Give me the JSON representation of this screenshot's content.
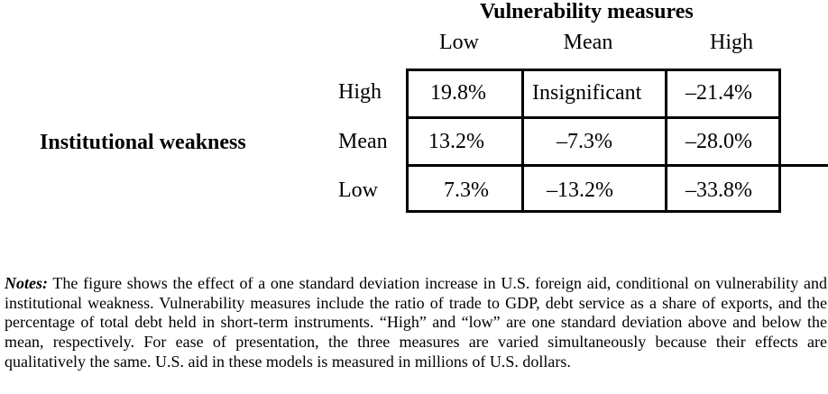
{
  "figure": {
    "column_group_title": "Vulnerability measures",
    "row_group_title": "Institutional weakness",
    "columns": [
      "Low",
      "Mean",
      "High"
    ],
    "rows": [
      {
        "label": "High",
        "cells": [
          "19.8%",
          "Insignificant",
          "–21.4%"
        ]
      },
      {
        "label": "Mean",
        "cells": [
          "13.2%",
          "–7.3%",
          "–28.0%"
        ]
      },
      {
        "label": "Low",
        "cells": [
          "7.3%",
          "–13.2%",
          "–33.8%"
        ]
      }
    ]
  },
  "notes": {
    "label": "Notes:",
    "text": "The figure shows the effect of a one standard deviation increase in U.S. foreign aid, conditional on vulnerability and institutional weakness. Vulnerability measures include the ratio of trade to GDP, debt service as a share of exports, and the percentage of total debt held in short-term instruments. “High” and “low” are one standard deviation above and below the mean, respectively. For ease of presentation, the three measures are varied simultaneously because their effects are qualitatively the same. U.S. aid in these models is measured in millions of U.S. dollars."
  }
}
